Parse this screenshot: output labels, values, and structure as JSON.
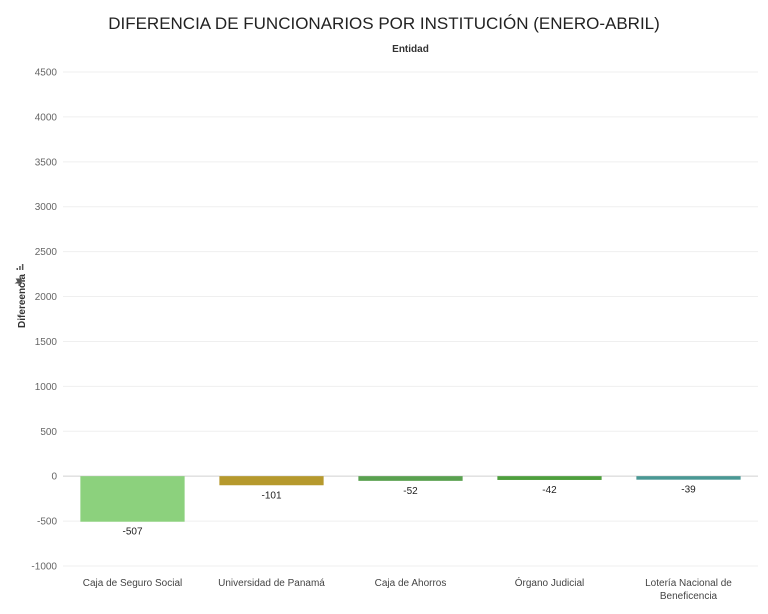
{
  "chart_data": {
    "type": "bar",
    "title": "DIFERENCIA DE FUNCIONARIOS POR INSTITUCIÓN (ENERO-ABRIL)",
    "subtitle": "Entidad",
    "ylabel": "Difereencia",
    "categories": [
      "Caja de Seguro Social",
      "Universidad de Panamá",
      "Caja de Ahorros",
      "Órgano Judicial",
      "Lotería Nacional de Beneficencia"
    ],
    "values": [
      -507,
      -101,
      -52,
      -42,
      -39
    ],
    "colors": [
      "#8cd17d",
      "#b6992d",
      "#59a14f",
      "#4e9f3d",
      "#499894"
    ],
    "ylim": [
      -1000,
      4500
    ],
    "yticks": [
      4500,
      4000,
      3500,
      3000,
      2500,
      2000,
      1500,
      1000,
      500,
      0,
      -500,
      -1000
    ],
    "grid": true,
    "data_labels": true
  }
}
